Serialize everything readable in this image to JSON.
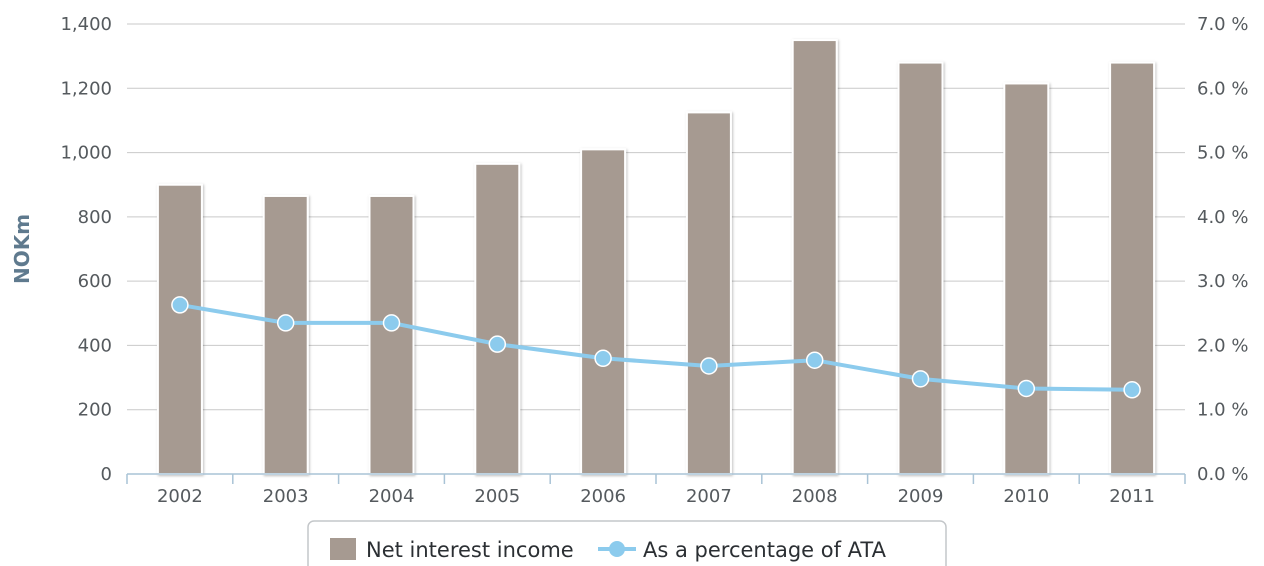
{
  "chart_data": {
    "type": "bar",
    "categories": [
      "2002",
      "2003",
      "2004",
      "2005",
      "2006",
      "2007",
      "2008",
      "2009",
      "2010",
      "2011"
    ],
    "series": [
      {
        "name": "Net interest income",
        "type": "bar",
        "axis": "left",
        "color": "#a69a91",
        "values": [
          900,
          865,
          865,
          965,
          1010,
          1125,
          1350,
          1280,
          1215,
          1280
        ]
      },
      {
        "name": "As a percentage of ATA",
        "type": "line",
        "axis": "right",
        "color": "#8ccbed",
        "values": [
          2.63,
          2.35,
          2.35,
          2.02,
          1.8,
          1.68,
          1.77,
          1.48,
          1.33,
          1.31
        ]
      }
    ],
    "ylabel": "NOKm",
    "ylim": [
      0,
      1400
    ],
    "yticks": [
      0,
      200,
      400,
      600,
      800,
      1000,
      1200,
      1400
    ],
    "ytick_labels": [
      "0",
      "200",
      "400",
      "600",
      "800",
      "1,000",
      "1,200",
      "1,400"
    ],
    "y2lim": [
      0,
      7
    ],
    "y2ticks": [
      0,
      1,
      2,
      3,
      4,
      5,
      6,
      7
    ],
    "y2tick_labels": [
      "0.0 %",
      "1.0 %",
      "2.0 %",
      "3.0 %",
      "4.0 %",
      "5.0 %",
      "6.0 %",
      "7.0 %"
    ],
    "grid": true,
    "legend_position": "bottom-center"
  }
}
